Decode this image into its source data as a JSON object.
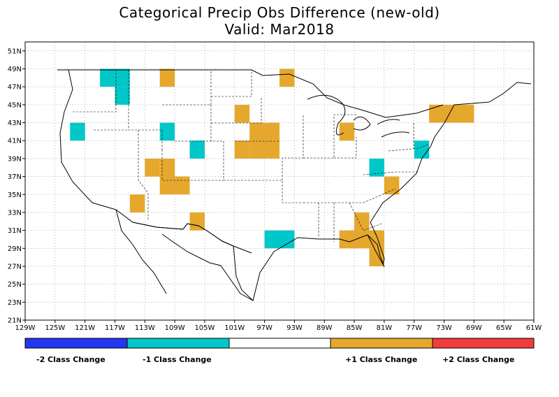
{
  "title": {
    "line1": "Categorical Precip Obs Difference (new-old)",
    "line2": "Valid: Mar2018"
  },
  "axes": {
    "lon_min": -129,
    "lon_max": -61,
    "lat_min": 21,
    "lat_max": 52,
    "lon_ticks": [
      "129W",
      "125W",
      "121W",
      "117W",
      "113W",
      "109W",
      "105W",
      "101W",
      "97W",
      "93W",
      "89W",
      "85W",
      "81W",
      "77W",
      "73W",
      "69W",
      "65W",
      "61W"
    ],
    "lat_ticks": [
      "21N",
      "23N",
      "25N",
      "27N",
      "29N",
      "31N",
      "33N",
      "35N",
      "37N",
      "39N",
      "41N",
      "43N",
      "45N",
      "47N",
      "49N",
      "51N"
    ],
    "grid": "dotted"
  },
  "colors": {
    "minus2": "#2436f0",
    "minus1": "#00c8c8",
    "zero": "#ffffff",
    "plus1": "#e6a82c",
    "plus2": "#f03c3c"
  },
  "legend": {
    "labels": [
      "-2 Class Change",
      "-1 Class Change",
      "+1 Class Change",
      "+2 Class Change"
    ]
  },
  "chart_data": {
    "type": "heatmap",
    "grid_cell_deg": 2,
    "cells_minus1": [
      [
        -118,
        48
      ],
      [
        -116,
        48
      ],
      [
        -116,
        46
      ],
      [
        -122,
        42
      ],
      [
        -110,
        42
      ],
      [
        -106,
        40
      ],
      [
        -82,
        38
      ],
      [
        -76,
        40
      ],
      [
        -96,
        30
      ],
      [
        -94,
        30
      ]
    ],
    "cells_plus1": [
      [
        -110,
        48
      ],
      [
        -94,
        48
      ],
      [
        -100,
        44
      ],
      [
        -98,
        42
      ],
      [
        -96,
        42
      ],
      [
        -98,
        40
      ],
      [
        -96,
        40
      ],
      [
        -100,
        40
      ],
      [
        -112,
        38
      ],
      [
        -110,
        38
      ],
      [
        -110,
        36
      ],
      [
        -108,
        36
      ],
      [
        -114,
        34
      ],
      [
        -106,
        32
      ],
      [
        -86,
        42
      ],
      [
        -80,
        36
      ],
      [
        -84,
        32
      ],
      [
        -86,
        30
      ],
      [
        -84,
        30
      ],
      [
        -82,
        30
      ],
      [
        -82,
        28
      ],
      [
        -74,
        44
      ],
      [
        -72,
        44
      ],
      [
        -70,
        44
      ]
    ]
  }
}
